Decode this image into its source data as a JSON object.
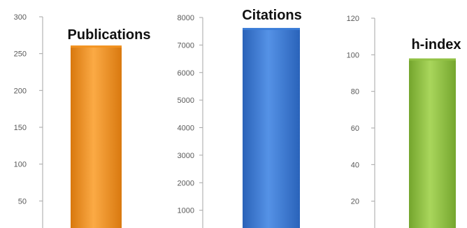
{
  "chart_data": [
    {
      "type": "bar",
      "title": "Publications",
      "categories": [
        ""
      ],
      "values": [
        261
      ],
      "ylim": [
        0,
        300
      ],
      "yticks": [
        50,
        100,
        150,
        200,
        250,
        300
      ],
      "color": "#f39421",
      "xlabel": "",
      "ylabel": "",
      "grid": false,
      "legend": "none"
    },
    {
      "type": "bar",
      "title": "Citations",
      "categories": [
        ""
      ],
      "values": [
        7620
      ],
      "ylim": [
        0,
        8000
      ],
      "yticks": [
        1000,
        2000,
        3000,
        4000,
        5000,
        6000,
        7000,
        8000
      ],
      "color": "#3b7dd8",
      "xlabel": "",
      "ylabel": "",
      "grid": false,
      "legend": "none"
    },
    {
      "type": "bar",
      "title": "h-index",
      "categories": [
        ""
      ],
      "values": [
        98
      ],
      "ylim": [
        0,
        120
      ],
      "yticks": [
        20,
        40,
        60,
        80,
        100,
        120
      ],
      "color": "#92c245",
      "xlabel": "",
      "ylabel": "",
      "grid": false,
      "legend": "none"
    }
  ]
}
